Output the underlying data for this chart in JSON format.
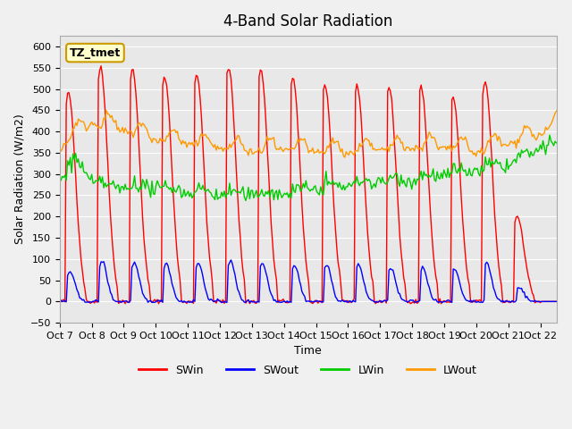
{
  "title": "4-Band Solar Radiation",
  "xlabel": "Time",
  "ylabel": "Solar Radiation (W/m2)",
  "ylim": [
    -50,
    625
  ],
  "yticks": [
    -50,
    0,
    50,
    100,
    150,
    200,
    250,
    300,
    350,
    400,
    450,
    500,
    550,
    600
  ],
  "xtick_labels": [
    "Oct 7",
    "Oct 8",
    "Oct 9",
    "Oct 10",
    "Oct 11",
    "Oct 12",
    "Oct 13",
    "Oct 14",
    "Oct 15",
    "Oct 16",
    "Oct 17",
    "Oct 18",
    "Oct 19",
    "Oct 20",
    "Oct 21",
    "Oct 22"
  ],
  "annotation_text": "TZ_tmet",
  "annotation_bg": "#ffffcc",
  "annotation_border": "#cc9900",
  "colors": {
    "SWin": "#ff0000",
    "SWout": "#0000ff",
    "LWin": "#00cc00",
    "LWout": "#ff9900"
  },
  "bg_color": "#e8e8e8",
  "plot_bg": "#e8e8e8",
  "grid_color": "#ffffff",
  "n_days": 15.5,
  "hours_per_day": 24
}
